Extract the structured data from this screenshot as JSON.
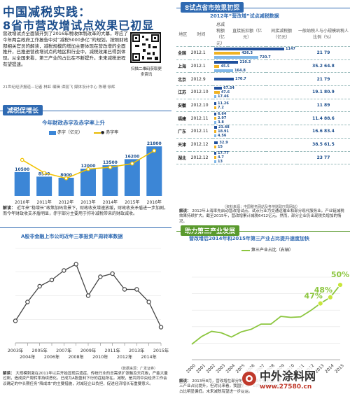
{
  "header": {
    "title": "中国减税实践：",
    "subtitle": "8省市营改增试点效果已初显"
  },
  "intro": {
    "text": "营改增试点全面铺开到了2016年税收体制改革的大幕，呼应了今年两会政府工作报告中对“减税5000多亿”的规划。按照财政部相关官员的解读，减税规模的增加主要体现在营改增的全面推开，已推进营改增试点的地区和行业中，减税效果已得到体现。从全国来看，第三产业的占比在不断提升。未来减税进程有望提速。",
    "credits": "21世纪经济报道—记者 林虹 编辑 谭丽飞 媒体设计中心 陈珊 徐辉",
    "qr_label": "扫描二维码获取更多资讯"
  },
  "chart1": {
    "section": "减税促增长",
    "title": "今年财政赤字及赤字率上升",
    "legend": {
      "bar": "赤字（亿元）",
      "line": "赤字率"
    },
    "analysis_label": "解读：",
    "analysis": "近年来“稳增长”政策加码背景下，财政收支增速放缓，财政收支矛盾进一步加剧。而今年财政收支矛盾明显，赤字部分主要用于弥补减税带来的财政减收。"
  },
  "chart2": {
    "title": "A股非金融上市公司近年三季报资产周转率数据",
    "source": "（数据来源：广发证券）",
    "analysis_label": "解读：",
    "analysis": "大规模刺激在2011年以后开始显现后遗症，传统行业的总需求扩张触及天花板，产能大量过剩，造成资产周转率持续恶化。已成为A股盈利下行的症结所在。减税，是共同中央经济工作会议确定的中长期任务“降成本”的主要措施，对减轻企业负担，促进经济增长有重要意义。"
  },
  "table": {
    "section": "8试点省市效果初探",
    "title": "2012年“营改增”试点减税数据",
    "headers": [
      "地区",
      "时间",
      "总减税额（亿元）",
      "直接抵扣额（亿元）",
      "间接减税额（亿元）",
      "一般纳税人与小规模纳税人比例（%）"
    ],
    "rows": [
      {
        "region": "全国",
        "date": "2012.1",
        "v1": "1147",
        "v2": "426.3",
        "v3": "720.7",
        "ratio": "21 79"
      },
      {
        "region": "上海",
        "date": "2012.1",
        "v1": "210.3",
        "v2": "45.5",
        "v3": "164.8",
        "ratio": "35.2 64.8"
      },
      {
        "region": "北京",
        "date": "2012.9",
        "v1": "170.7",
        "v2": "",
        "v3": "",
        "ratio": "21 79"
      },
      {
        "region": "江苏",
        "date": "2012.10",
        "v1": "67.54",
        "v2": "47.6",
        "v3": "17.46",
        "ratio": "19.1 80.9"
      },
      {
        "region": "安徽",
        "date": "2012.10",
        "v1": "11.26",
        "v2": "7.2",
        "v3": "",
        "ratio": "11 89"
      },
      {
        "region": "福建",
        "date": "2012.11",
        "v1": "6.64",
        "v2": "2.97",
        "v3": "3.8",
        "ratio": "11.4 88.6"
      },
      {
        "region": "广东",
        "date": "2012.11",
        "v1": "23.48",
        "v2": "18.91",
        "v3": "4.56",
        "ratio": "16.6 83.4"
      },
      {
        "region": "天津",
        "date": "2012.12",
        "v1": "32.9",
        "v2": "15",
        "v3": "",
        "ratio": "38.5 61.5"
      },
      {
        "region": "湖北",
        "date": "2012.12",
        "v1": "17.77",
        "v2": "4.7",
        "v3": "13",
        "ratio": "23 77"
      }
    ],
    "source": "（资料来源：中国税务网站及各地财政厅局网站）",
    "analysis_label": "解读：",
    "analysis": "2012年上海率先启动营改增试点。试点行业为交通运输业和部分现代服务业。产业链减税效果持续扩大。截至2015年，营改增累计减税6412亿元。然而，部分企业仍出现税负增加的情况。"
  },
  "chart3": {
    "section": "助力第三产业发展",
    "title": "营改增后2014年和2015年第三产业占比提升速度加快",
    "legend": "第三产业占比（右轴）",
    "callouts": [
      "47%",
      "48%",
      "50%"
    ],
    "analysis_label": "解读：",
    "analysis": "2013年8月，营改增在部分地区试点推开至全国。第三产业占比提升，但对比来看，我国第三产业的比例46.9%，占比明显偏低。未来减税有望进一步提速。"
  },
  "watermark": {
    "logo": "中外涂料网",
    "url": "www.27580.cn"
  },
  "chart_data": [
    {
      "type": "bar",
      "title": "今年财政赤字及赤字率上升",
      "categories": [
        "2010年",
        "2011年",
        "2012年",
        "2013年",
        "2014年",
        "2015年",
        "2016年"
      ],
      "series": [
        {
          "name": "赤字（亿元）",
          "values": [
            10500,
            8500,
            8000,
            12000,
            13500,
            16200,
            21800
          ]
        },
        {
          "name": "赤字率",
          "values": [
            2.5,
            1.8,
            1.5,
            2.0,
            2.1,
            2.3,
            3.0
          ]
        }
      ]
    },
    {
      "type": "line",
      "title": "A股非金融上市公司近年三季报资产周转率数据",
      "categories": [
        "2003年",
        "2004年",
        "2005年",
        "2006年",
        "2007年",
        "2008年",
        "2009年",
        "2010年",
        "2011年",
        "2012年",
        "2013年",
        "2014年",
        "2015年"
      ],
      "values": [
        0.52,
        0.58,
        0.63,
        0.65,
        0.68,
        0.7,
        0.6,
        0.66,
        0.67,
        0.62,
        0.62,
        0.58,
        0.5
      ]
    },
    {
      "type": "line",
      "title": "营改增后2014年和2015年第三产业占比提升速度加快",
      "categories": [
        "2000",
        "2001",
        "2002",
        "2003",
        "2004",
        "2005",
        "2006",
        "2007",
        "2008",
        "2009",
        "2010",
        "2011",
        "2012",
        "2013",
        "2014",
        "2015"
      ],
      "series": [
        {
          "name": "第三产业占比（右轴）",
          "values": [
            39.0,
            40.5,
            41.5,
            41.2,
            40.4,
            41.4,
            41.9,
            42.9,
            42.9,
            44.4,
            44.2,
            44.3,
            45.5,
            46.9,
            48.1,
            50.5
          ]
        }
      ]
    }
  ]
}
